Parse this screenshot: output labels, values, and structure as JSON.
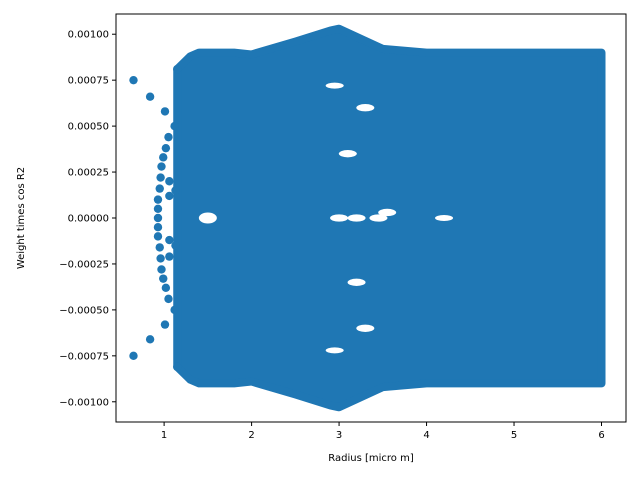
{
  "chart_data": {
    "type": "scatter",
    "title": "",
    "xlabel": "Radius [micro m]",
    "ylabel": "Weight times  cos  R2",
    "xlim": [
      0.45,
      6.28
    ],
    "ylim": [
      -0.00111,
      0.00111
    ],
    "grid": false,
    "legend": "none",
    "colors": {
      "marker": "#1f77b4",
      "axes": "#000000",
      "background": "#ffffff"
    },
    "x_ticks": [
      {
        "value": 1,
        "label": "1"
      },
      {
        "value": 2,
        "label": "2"
      },
      {
        "value": 3,
        "label": "3"
      },
      {
        "value": 4,
        "label": "4"
      },
      {
        "value": 5,
        "label": "5"
      },
      {
        "value": 6,
        "label": "6"
      }
    ],
    "y_ticks": [
      {
        "value": 0.001,
        "label": "0.00100"
      },
      {
        "value": 0.00075,
        "label": "0.00075"
      },
      {
        "value": 0.0005,
        "label": "0.00050"
      },
      {
        "value": 0.00025,
        "label": "0.00025"
      },
      {
        "value": 0,
        "label": "0.00000"
      },
      {
        "value": -0.00025,
        "label": "−0.00025"
      },
      {
        "value": -0.0005,
        "label": "−0.00050"
      },
      {
        "value": -0.00075,
        "label": "−0.00075"
      },
      {
        "value": -0.001,
        "label": "−0.00100"
      }
    ],
    "envelope": {
      "x": [
        1.15,
        1.3,
        1.4,
        1.6,
        1.8,
        2.0,
        2.5,
        2.9,
        3.0,
        3.5,
        4.0,
        4.5,
        5.0,
        5.5,
        6.0
      ],
      "ymax": [
        0.00081,
        0.00088,
        0.0009,
        0.0009,
        0.0009,
        0.00089,
        0.00096,
        0.00102,
        0.00103,
        0.00092,
        0.0009,
        0.0009,
        0.0009,
        0.0009,
        0.0009
      ]
    },
    "series": [
      {
        "values": [
          {
            "x": 0.65,
            "y": 0.00075
          },
          {
            "x": 0.65,
            "y": -0.00075
          },
          {
            "x": 0.84,
            "y": 0.00066
          },
          {
            "x": 0.84,
            "y": -0.00066
          },
          {
            "x": 1.01,
            "y": 0.00058
          },
          {
            "x": 1.01,
            "y": -0.00058
          },
          {
            "x": 1.02,
            "y": 0.00038
          },
          {
            "x": 1.02,
            "y": -0.00038
          },
          {
            "x": 0.99,
            "y": 0.00033
          },
          {
            "x": 0.99,
            "y": -0.00033
          },
          {
            "x": 0.97,
            "y": 0.00028
          },
          {
            "x": 0.97,
            "y": -0.00028
          },
          {
            "x": 0.96,
            "y": 0.00022
          },
          {
            "x": 0.96,
            "y": -0.00022
          },
          {
            "x": 0.95,
            "y": 0.00016
          },
          {
            "x": 0.95,
            "y": -0.00016
          },
          {
            "x": 0.93,
            "y": 0.0001
          },
          {
            "x": 0.93,
            "y": -0.0001
          },
          {
            "x": 0.93,
            "y": 5e-05
          },
          {
            "x": 0.93,
            "y": -5e-05
          },
          {
            "x": 0.93,
            "y": 0.0
          },
          {
            "x": 1.05,
            "y": 0.00044
          },
          {
            "x": 1.05,
            "y": -0.00044
          },
          {
            "x": 1.06,
            "y": 0.00012
          },
          {
            "x": 1.06,
            "y": -0.00012
          },
          {
            "x": 1.06,
            "y": 0.0002
          },
          {
            "x": 1.06,
            "y": -0.00021
          },
          {
            "x": 1.15,
            "y": 0.00081
          },
          {
            "x": 1.15,
            "y": -0.00081
          },
          {
            "x": 1.12,
            "y": 0.0005
          },
          {
            "x": 1.12,
            "y": -0.0005
          },
          {
            "x": 1.13,
            "y": 0.00015
          },
          {
            "x": 1.13,
            "y": -0.00015
          }
        ]
      }
    ]
  }
}
